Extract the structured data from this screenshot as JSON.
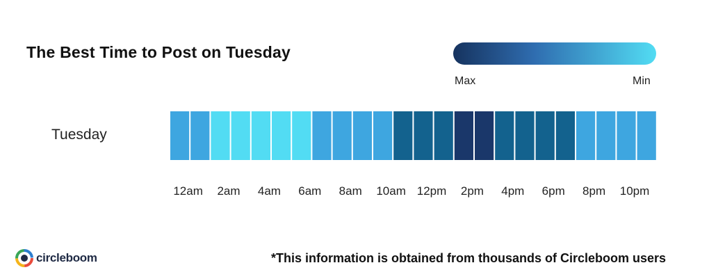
{
  "title": "The Best Time to Post on Tuesday",
  "legend": {
    "max_label": "Max",
    "min_label": "Min",
    "gradient_colors": [
      "#16335f",
      "#52dcf3"
    ]
  },
  "footnote": "*This information is obtained from thousands of Circleboom users",
  "logo_text": "circleboom",
  "chart_data": {
    "type": "heatmap",
    "row": "Tuesday",
    "x_tick_labels": [
      "12am",
      "2am",
      "4am",
      "6am",
      "8am",
      "10am",
      "12pm",
      "2pm",
      "4pm",
      "6pm",
      "8pm",
      "10pm"
    ],
    "hours": [
      "12am",
      "1am",
      "2am",
      "3am",
      "4am",
      "5am",
      "6am",
      "7am",
      "8am",
      "9am",
      "10am",
      "11am",
      "12pm",
      "1pm",
      "2pm",
      "3pm",
      "4pm",
      "5pm",
      "6pm",
      "7pm",
      "8pm",
      "9pm",
      "10pm",
      "11pm"
    ],
    "levels": [
      3,
      3,
      1,
      1,
      1,
      1,
      1,
      3,
      3,
      3,
      3,
      4,
      4,
      4,
      5,
      5,
      4,
      4,
      4,
      4,
      3,
      3,
      3,
      3
    ],
    "level_scale": "1 = Min, 5 = Max",
    "level_colors": {
      "1": "#52dcf3",
      "2": "#45c3ea",
      "3": "#3ea6e0",
      "4": "#13628e",
      "5": "#1a376a"
    }
  }
}
